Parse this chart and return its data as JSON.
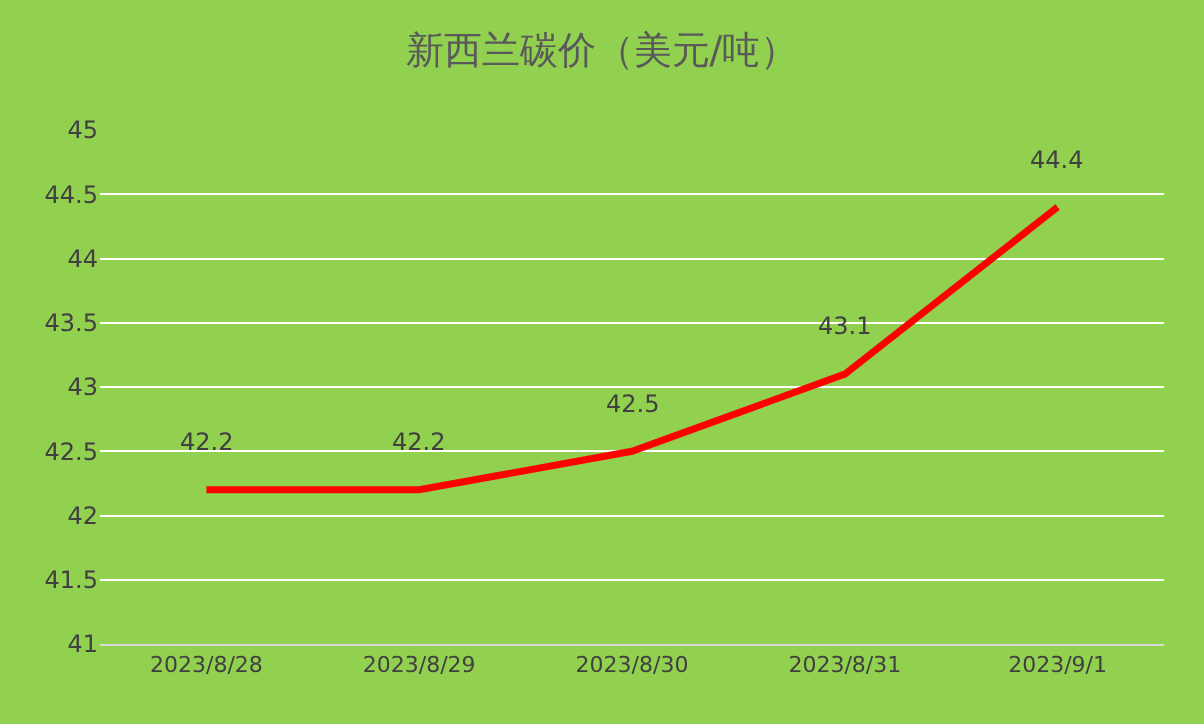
{
  "chart_data": {
    "type": "line",
    "title": "新西兰碳价（美元/吨）",
    "categories": [
      "2023/8/28",
      "2023/8/29",
      "2023/8/30",
      "2023/8/31",
      "2023/9/1"
    ],
    "series": [
      {
        "color": "#ff0000",
        "values": [
          42.2,
          42.2,
          42.5,
          43.1,
          44.4
        ]
      }
    ],
    "ylim": [
      41,
      45
    ],
    "yticks": [
      41,
      41.5,
      42,
      42.5,
      43,
      43.5,
      44,
      44.5,
      45
    ],
    "grid": "y",
    "data_labels": true,
    "marker": "none",
    "line_style": "solid"
  }
}
